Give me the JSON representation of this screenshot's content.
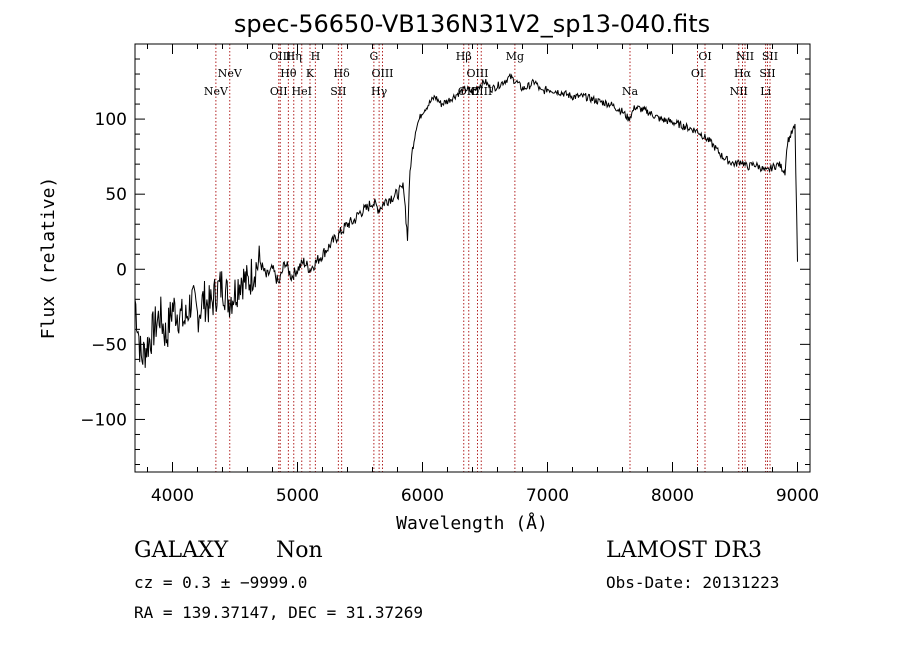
{
  "chart_data": {
    "type": "line",
    "title": "spec-56650-VB136N31V2_sp13-040.fits",
    "xlabel": "Wavelength (Å)",
    "ylabel": "Flux (relative)",
    "xlim": [
      3700,
      9100
    ],
    "ylim": [
      -135,
      150
    ],
    "xticks": [
      4000,
      5000,
      6000,
      7000,
      8000,
      9000
    ],
    "yticks": [
      -100,
      -50,
      0,
      50,
      100
    ],
    "x_tick_labels": [
      "4000",
      "5000",
      "6000",
      "7000",
      "8000",
      "9000"
    ],
    "y_tick_labels": [
      "−100",
      "−50",
      "0",
      "50",
      "100"
    ],
    "line_color": "#000000",
    "marker_color": "#b22222",
    "series": [
      {
        "name": "flux",
        "x": [
          3700,
          3750,
          3800,
          3850,
          3900,
          3950,
          4000,
          4050,
          4100,
          4150,
          4200,
          4250,
          4300,
          4350,
          4400,
          4450,
          4500,
          4550,
          4600,
          4650,
          4700,
          4750,
          4800,
          4850,
          4900,
          4950,
          5000,
          5050,
          5100,
          5150,
          5200,
          5250,
          5300,
          5350,
          5400,
          5450,
          5500,
          5550,
          5600,
          5650,
          5700,
          5750,
          5800,
          5850,
          5880,
          5900,
          5920,
          5950,
          6000,
          6050,
          6100,
          6150,
          6200,
          6250,
          6300,
          6350,
          6400,
          6450,
          6500,
          6550,
          6600,
          6650,
          6700,
          6750,
          6800,
          6850,
          6900,
          6950,
          7000,
          7100,
          7200,
          7300,
          7400,
          7500,
          7600,
          7650,
          7700,
          7800,
          7900,
          8000,
          8100,
          8200,
          8300,
          8350,
          8400,
          8450,
          8500,
          8550,
          8600,
          8650,
          8700,
          8750,
          8800,
          8850,
          8900,
          8920,
          8950,
          8980,
          9000
        ],
        "y": [
          -20,
          -60,
          -50,
          -40,
          -30,
          -45,
          -25,
          -30,
          -35,
          -20,
          -30,
          -20,
          -25,
          -15,
          -10,
          -20,
          -15,
          -5,
          -10,
          0,
          5,
          -5,
          0,
          -10,
          5,
          -5,
          0,
          5,
          0,
          5,
          10,
          15,
          20,
          25,
          30,
          32,
          38,
          40,
          45,
          40,
          45,
          48,
          50,
          55,
          20,
          65,
          80,
          95,
          105,
          110,
          115,
          110,
          112,
          115,
          118,
          120,
          118,
          122,
          125,
          120,
          122,
          125,
          128,
          125,
          120,
          122,
          125,
          118,
          120,
          118,
          115,
          115,
          112,
          110,
          105,
          100,
          108,
          105,
          100,
          98,
          95,
          92,
          85,
          80,
          75,
          72,
          70,
          72,
          68,
          70,
          68,
          65,
          68,
          70,
          65,
          85,
          90,
          95,
          5
        ]
      }
    ],
    "line_markers": [
      {
        "label": "NeV",
        "wavelength": 4347,
        "row": 1
      },
      {
        "label": "NeV",
        "wavelength": 4458,
        "row": 2
      },
      {
        "label": "OII",
        "wavelength": 4850,
        "row": 1
      },
      {
        "label": "OIII",
        "wavelength": 4862,
        "row": 3
      },
      {
        "label": "Hθ",
        "wavelength": 4927,
        "row": 2
      },
      {
        "label": "Hη",
        "wavelength": 4970,
        "row": 3
      },
      {
        "label": "HeI",
        "wavelength": 5034,
        "row": 1
      },
      {
        "label": "K",
        "wavelength": 5100,
        "row": 2
      },
      {
        "label": "H",
        "wavelength": 5143,
        "row": 3
      },
      {
        "label": "SII",
        "wavelength": 5327,
        "row": 1
      },
      {
        "label": "Hδ",
        "wavelength": 5353,
        "row": 2
      },
      {
        "label": "G",
        "wavelength": 5611,
        "row": 3
      },
      {
        "label": "Hγ",
        "wavelength": 5653,
        "row": 1
      },
      {
        "label": "OIII",
        "wavelength": 5680,
        "row": 2
      },
      {
        "label": "Hβ",
        "wavelength": 6330,
        "row": 3
      },
      {
        "label": "OIII",
        "wavelength": 6370,
        "row": 1
      },
      {
        "label": "OIII",
        "wavelength": 6440,
        "row": 2
      },
      {
        "label": "OIII",
        "wavelength": 6470,
        "row": 1
      },
      {
        "label": "Mg",
        "wavelength": 6739,
        "row": 3
      },
      {
        "label": "Na",
        "wavelength": 7660,
        "row": 1
      },
      {
        "label": "OI",
        "wavelength": 8200,
        "row": 2
      },
      {
        "label": "OI",
        "wavelength": 8260,
        "row": 3
      },
      {
        "label": "NII",
        "wavelength": 8530,
        "row": 1
      },
      {
        "label": "Hα",
        "wavelength": 8560,
        "row": 2
      },
      {
        "label": "NII",
        "wavelength": 8580,
        "row": 3
      },
      {
        "label": "Li",
        "wavelength": 8745,
        "row": 1
      },
      {
        "label": "SII",
        "wavelength": 8760,
        "row": 2
      },
      {
        "label": "SII",
        "wavelength": 8780,
        "row": 3
      }
    ]
  },
  "info": {
    "object_class": "GALAXY",
    "subclass": "Non",
    "survey": "LAMOST DR3",
    "redshift": "cz = 0.3 ± −9999.0",
    "obs_date": "Obs-Date: 20131223",
    "coords": "RA = 139.37147, DEC =  31.37269"
  }
}
